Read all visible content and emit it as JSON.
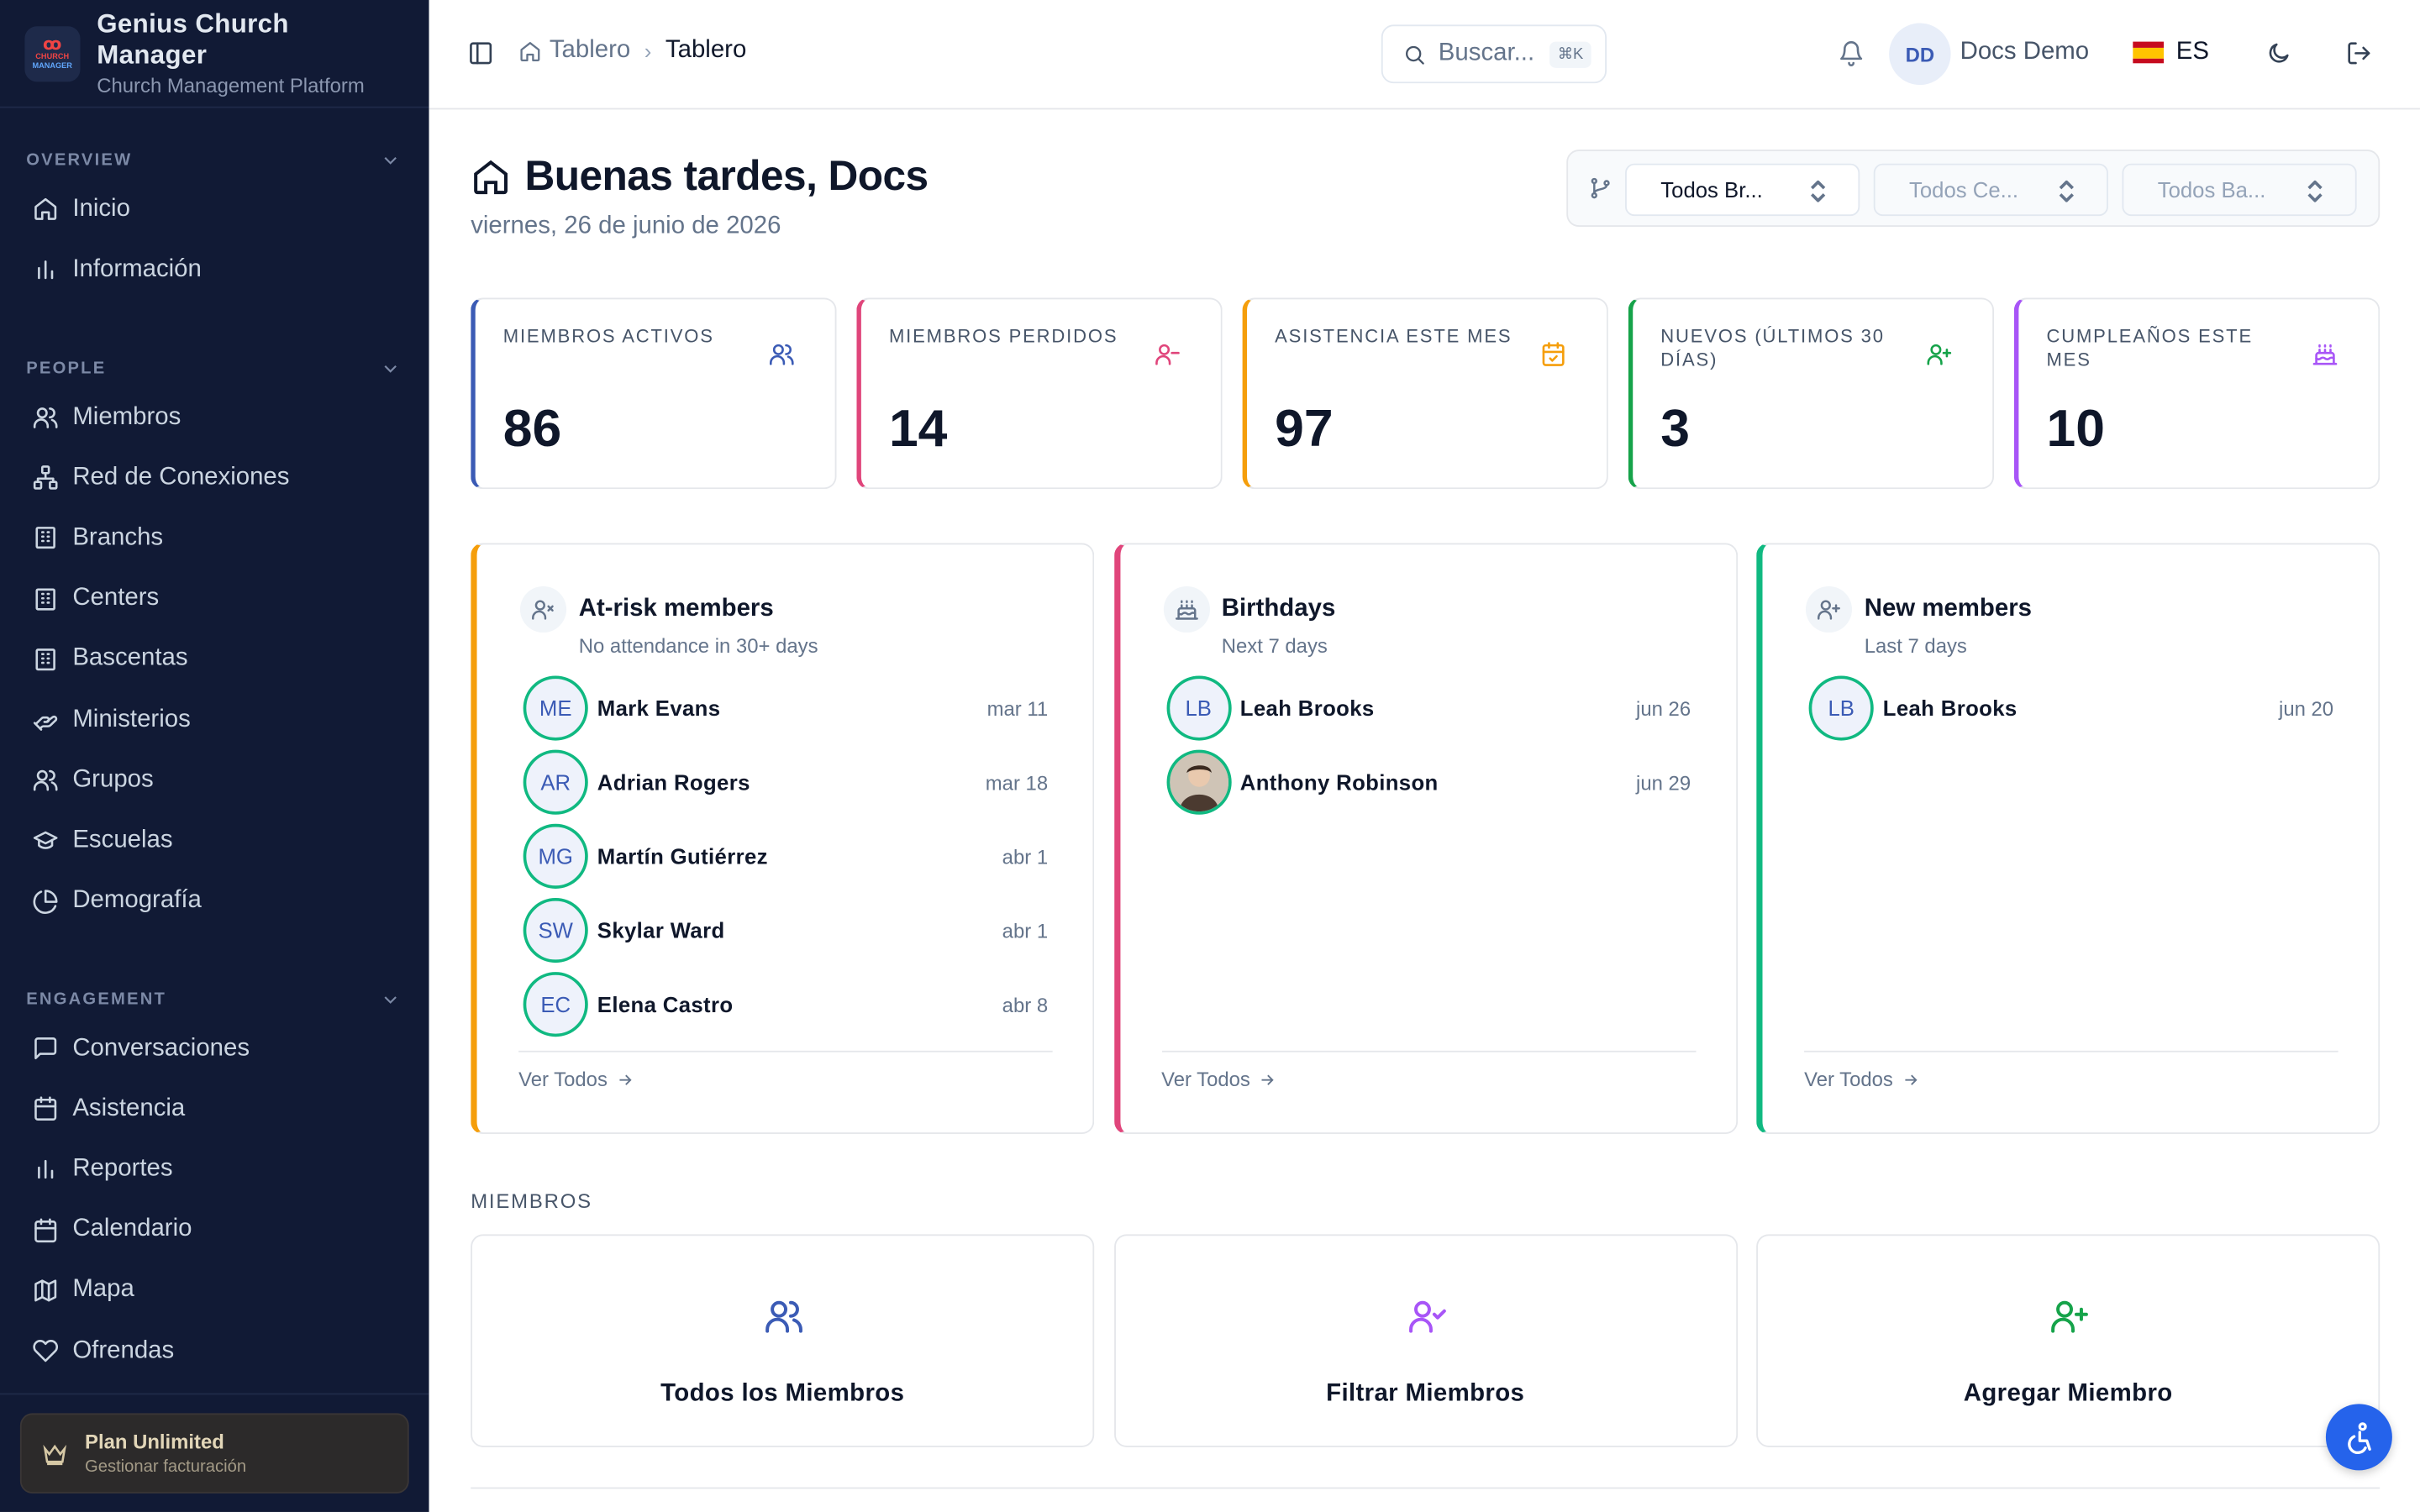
{
  "brand": {
    "title": "Genius Church Manager",
    "subtitle": "Church Management Platform",
    "logo_top": "CHURCH",
    "logo_bottom": "MANAGER"
  },
  "sidebar": {
    "sections": [
      {
        "title": "OVERVIEW",
        "items": [
          {
            "label": "Inicio",
            "icon": "home-icon"
          },
          {
            "label": "Información",
            "icon": "bar-chart-icon"
          }
        ]
      },
      {
        "title": "PEOPLE",
        "items": [
          {
            "label": "Miembros",
            "icon": "users-icon"
          },
          {
            "label": "Red de Conexiones",
            "icon": "network-icon"
          },
          {
            "label": "Branchs",
            "icon": "building-icon"
          },
          {
            "label": "Centers",
            "icon": "building-icon"
          },
          {
            "label": "Bascentas",
            "icon": "building-icon"
          },
          {
            "label": "Ministerios",
            "icon": "hand-heart-icon"
          },
          {
            "label": "Grupos",
            "icon": "users-icon"
          },
          {
            "label": "Escuelas",
            "icon": "graduation-cap-icon"
          },
          {
            "label": "Demografía",
            "icon": "pie-chart-icon"
          }
        ]
      },
      {
        "title": "ENGAGEMENT",
        "items": [
          {
            "label": "Conversaciones",
            "icon": "message-icon"
          },
          {
            "label": "Asistencia",
            "icon": "calendar-icon"
          },
          {
            "label": "Reportes",
            "icon": "bar-chart-icon"
          },
          {
            "label": "Calendario",
            "icon": "calendar-icon"
          },
          {
            "label": "Mapa",
            "icon": "map-icon"
          },
          {
            "label": "Ofrendas",
            "icon": "heart-icon"
          }
        ]
      }
    ],
    "plan": {
      "title": "Plan Unlimited",
      "subtitle": "Gestionar facturación"
    }
  },
  "topbar": {
    "breadcrumb": [
      "Tablero",
      "Tablero"
    ],
    "search_placeholder": "Buscar...",
    "search_shortcut": "⌘K",
    "user_initials": "DD",
    "user_name": "Docs Demo",
    "language": "ES"
  },
  "header": {
    "greeting": "Buenas tardes, Docs",
    "date": "viernes, 26 de junio de 2026"
  },
  "filters": [
    "Todos Br...",
    "Todos Ce...",
    "Todos Ba..."
  ],
  "stats": [
    {
      "label": "MIEMBROS ACTIVOS",
      "value": "86",
      "color": "#3b5bb5",
      "icon": "users-icon"
    },
    {
      "label": "MIEMBROS PERDIDOS",
      "value": "14",
      "color": "#e0457b",
      "icon": "user-minus-icon"
    },
    {
      "label": "ASISTENCIA ESTE MES",
      "value": "97",
      "color": "#f59e0b",
      "icon": "calendar-check-icon"
    },
    {
      "label": "NUEVOS (ÚLTIMOS 30 DÍAS)",
      "value": "3",
      "color": "#16a34a",
      "icon": "user-plus-icon"
    },
    {
      "label": "CUMPLEAÑOS ESTE MES",
      "value": "10",
      "color": "#a855f7",
      "icon": "cake-icon"
    }
  ],
  "panels": [
    {
      "title": "At-risk members",
      "subtitle": "No attendance in 30+ days",
      "color": "#f59e0b",
      "icon": "user-x-icon",
      "more": "Ver Todos",
      "rows": [
        {
          "initials": "ME",
          "name": "Mark Evans",
          "date": "mar 11"
        },
        {
          "initials": "AR",
          "name": "Adrian Rogers",
          "date": "mar 18"
        },
        {
          "initials": "MG",
          "name": "Martín Gutiérrez",
          "date": "abr 1"
        },
        {
          "initials": "SW",
          "name": "Skylar Ward",
          "date": "abr 1"
        },
        {
          "initials": "EC",
          "name": "Elena Castro",
          "date": "abr 8"
        }
      ]
    },
    {
      "title": "Birthdays",
      "subtitle": "Next 7 days",
      "color": "#e0457b",
      "icon": "cake-icon",
      "more": "Ver Todos",
      "rows": [
        {
          "initials": "LB",
          "name": "Leah Brooks",
          "date": "jun 26"
        },
        {
          "initials": "",
          "name": "Anthony Robinson",
          "date": "jun 29",
          "photo": true
        }
      ]
    },
    {
      "title": "New members",
      "subtitle": "Last 7 days",
      "color": "#10b981",
      "icon": "user-plus-icon",
      "more": "Ver Todos",
      "rows": [
        {
          "initials": "LB",
          "name": "Leah Brooks",
          "date": "jun 20"
        }
      ]
    }
  ],
  "members_section": {
    "title": "MIEMBROS",
    "actions": [
      {
        "label": "Todos los Miembros",
        "color": "#3b5bb5",
        "icon": "users-icon"
      },
      {
        "label": "Filtrar Miembros",
        "color": "#a855f7",
        "icon": "user-check-icon"
      },
      {
        "label": "Agregar Miembro",
        "color": "#16a34a",
        "icon": "user-plus-icon"
      }
    ]
  }
}
